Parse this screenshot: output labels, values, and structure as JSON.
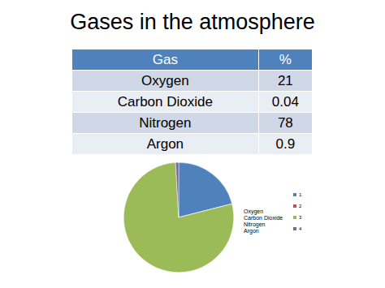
{
  "title": "Gases in the atmosphere",
  "table": {
    "header": [
      "Gas",
      "%"
    ],
    "rows": [
      [
        "Oxygen",
        21
      ],
      [
        "Carbon Dioxide",
        0.04
      ],
      [
        "Nitrogen",
        78
      ],
      [
        "Argon",
        0.9
      ]
    ]
  },
  "chart_data": {
    "type": "pie",
    "categories": [
      "1",
      "2",
      "3",
      "4"
    ],
    "values": [
      21,
      0.04,
      78,
      0.9
    ],
    "colors": [
      "#4f81bd",
      "#c0504d",
      "#9bbb59",
      "#8064a2"
    ],
    "legend": "right",
    "annotations": [
      "Oxygen",
      "Carbon Dioxide",
      "Nitrogen",
      "Argon"
    ]
  }
}
